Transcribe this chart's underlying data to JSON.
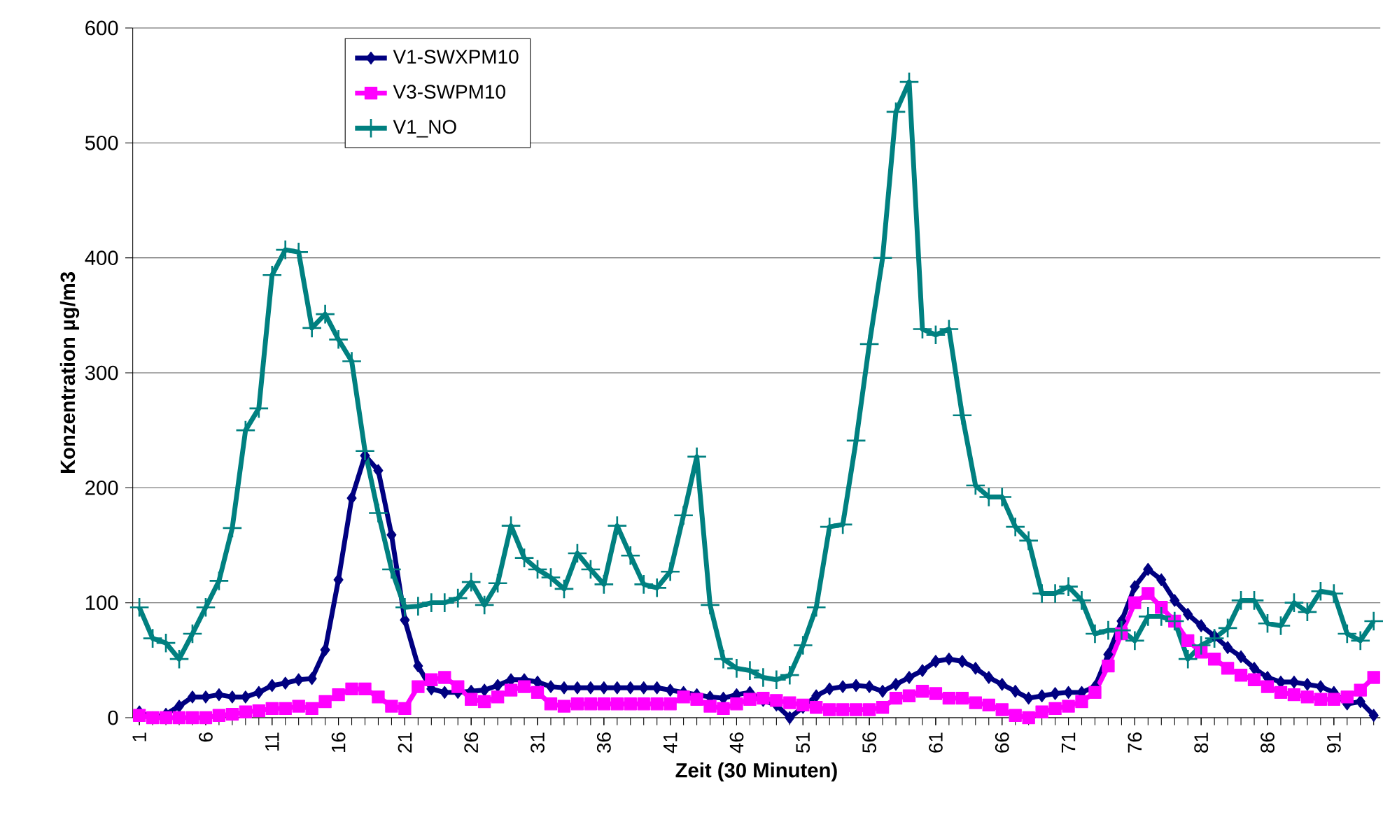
{
  "chart_data": {
    "type": "line",
    "xlabel": "Zeit (30 Minuten)",
    "ylabel": "Konzentration µg/m3",
    "x": [
      1,
      2,
      3,
      4,
      5,
      6,
      7,
      8,
      9,
      10,
      11,
      12,
      13,
      14,
      15,
      16,
      17,
      18,
      19,
      20,
      21,
      22,
      23,
      24,
      25,
      26,
      27,
      28,
      29,
      30,
      31,
      32,
      33,
      34,
      35,
      36,
      37,
      38,
      39,
      40,
      41,
      42,
      43,
      44,
      45,
      46,
      47,
      48,
      49,
      50,
      51,
      52,
      53,
      54,
      55,
      56,
      57,
      58,
      59,
      60,
      61,
      62,
      63,
      64,
      65,
      66,
      67,
      68,
      69,
      70,
      71,
      72,
      73,
      74,
      75,
      76,
      77,
      78,
      79,
      80,
      81,
      82,
      83,
      84,
      85,
      86,
      87,
      88,
      89,
      90,
      91,
      92,
      93,
      94
    ],
    "xlim": [
      0.5,
      94.5
    ],
    "xticks": [
      1,
      6,
      11,
      16,
      21,
      26,
      31,
      36,
      41,
      46,
      51,
      56,
      61,
      66,
      71,
      76,
      81,
      86,
      91
    ],
    "ylim": [
      0,
      600
    ],
    "yticks": [
      0,
      100,
      200,
      300,
      400,
      500,
      600
    ],
    "grid": "y",
    "legend": "top left",
    "line_style": "solid",
    "series": [
      {
        "name": "V1-SWXPM10",
        "color": "#000080",
        "marker": "diamond",
        "values": [
          5,
          0,
          3,
          10,
          18,
          18,
          20,
          18,
          18,
          22,
          28,
          30,
          33,
          34,
          59,
          120,
          191,
          228,
          215,
          159,
          85,
          45,
          25,
          22,
          22,
          23,
          24,
          28,
          33,
          33,
          31,
          27,
          26,
          26,
          26,
          26,
          26,
          26,
          26,
          26,
          24,
          22,
          20,
          18,
          17,
          20,
          22,
          15,
          11,
          0,
          9,
          19,
          25,
          27,
          28,
          27,
          23,
          29,
          35,
          41,
          49,
          51,
          49,
          43,
          35,
          29,
          23,
          17,
          19,
          21,
          22,
          22,
          27,
          55,
          84,
          114,
          129,
          120,
          102,
          90,
          80,
          71,
          61,
          53,
          43,
          35,
          31,
          31,
          29,
          27,
          22,
          12,
          14,
          2
        ]
      },
      {
        "name": "V3-SWPM10",
        "color": "#ff00ff",
        "marker": "square",
        "values": [
          2,
          0,
          0,
          0,
          0,
          0,
          2,
          3,
          5,
          6,
          8,
          8,
          10,
          8,
          14,
          20,
          25,
          25,
          18,
          10,
          8,
          27,
          33,
          35,
          27,
          16,
          14,
          18,
          24,
          27,
          22,
          12,
          10,
          12,
          12,
          12,
          12,
          12,
          12,
          12,
          12,
          18,
          16,
          10,
          8,
          12,
          16,
          17,
          15,
          13,
          11,
          9,
          7,
          7,
          7,
          7,
          9,
          17,
          19,
          23,
          21,
          17,
          17,
          13,
          11,
          7,
          2,
          0,
          5,
          8,
          10,
          14,
          22,
          45,
          73,
          100,
          108,
          96,
          84,
          67,
          57,
          51,
          43,
          37,
          33,
          27,
          22,
          20,
          18,
          16,
          16,
          18,
          24,
          35
        ]
      },
      {
        "name": "V1_NO",
        "color": "#008080",
        "marker": "cross",
        "values": [
          96,
          69,
          65,
          51,
          73,
          96,
          119,
          165,
          250,
          269,
          385,
          407,
          405,
          339,
          351,
          329,
          310,
          232,
          178,
          129,
          96,
          97,
          100,
          100,
          104,
          118,
          98,
          117,
          167,
          139,
          129,
          122,
          112,
          143,
          129,
          116,
          167,
          141,
          116,
          113,
          127,
          176,
          227,
          98,
          51,
          43,
          41,
          35,
          33,
          37,
          63,
          96,
          166,
          168,
          241,
          325,
          400,
          527,
          553,
          338,
          333,
          338,
          263,
          202,
          192,
          192,
          166,
          154,
          108,
          108,
          114,
          102,
          73,
          76,
          76,
          67,
          88,
          88,
          84,
          51,
          63,
          69,
          78,
          102,
          102,
          82,
          80,
          100,
          92,
          110,
          108,
          73,
          67,
          84
        ]
      }
    ]
  }
}
